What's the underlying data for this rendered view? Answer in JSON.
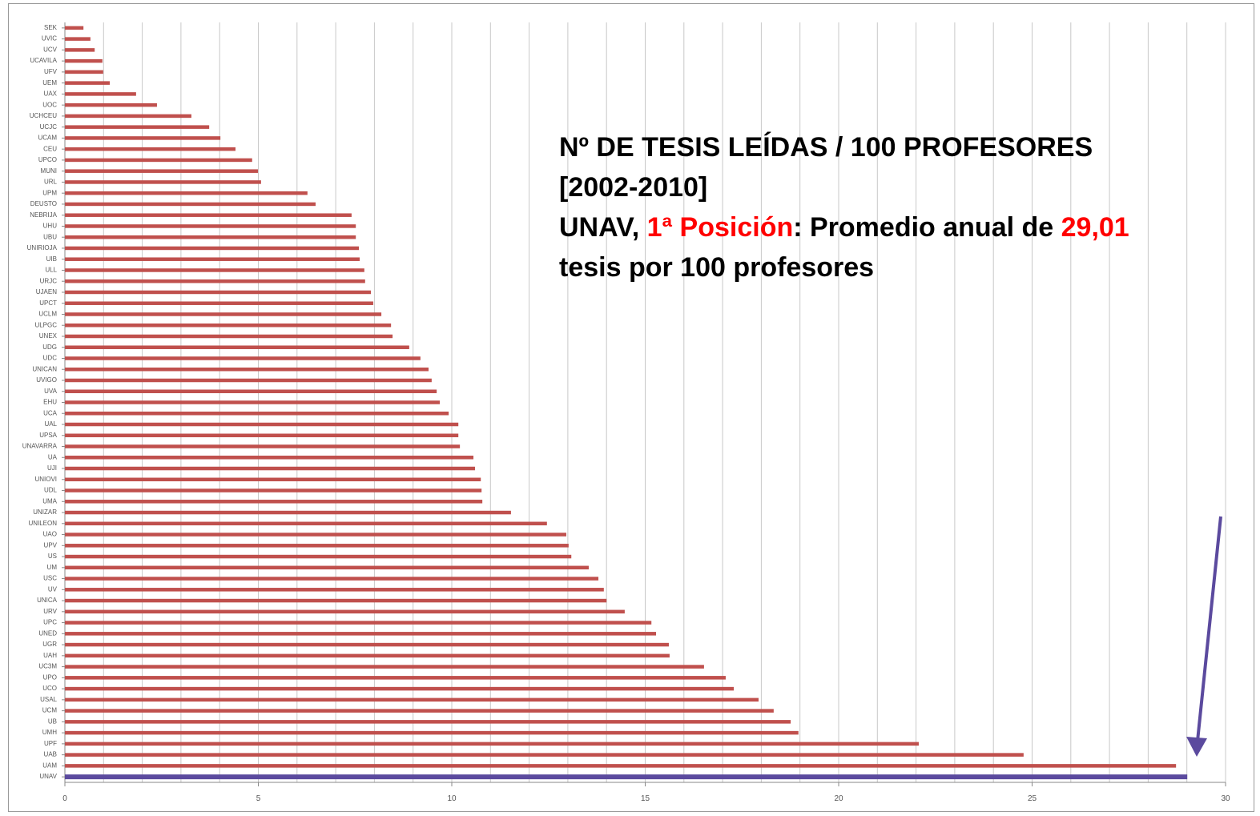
{
  "chart_data": {
    "type": "bar",
    "orientation": "horizontal",
    "categories": [
      "SEK",
      "UVIC",
      "UCV",
      "UCAVILA",
      "UFV",
      "UEM",
      "UAX",
      "UOC",
      "UCHCEU",
      "UCJC",
      "UCAM",
      "CEU",
      "UPCO",
      "MUNI",
      "URL",
      "UPM",
      "DEUSTO",
      "NEBRIJA",
      "UHU",
      "UBU",
      "UNIRIOJA",
      "UIB",
      "ULL",
      "URJC",
      "UJAEN",
      "UPCT",
      "UCLM",
      "ULPGC",
      "UNEX",
      "UDG",
      "UDC",
      "UNICAN",
      "UVIGO",
      "UVA",
      "EHU",
      "UCA",
      "UAL",
      "UPSA",
      "UNAVARRA",
      "UA",
      "UJI",
      "UNIOVI",
      "UDL",
      "UMA",
      "UNIZAR",
      "UNILEON",
      "UAO",
      "UPV",
      "US",
      "UM",
      "USC",
      "UV",
      "UNICA",
      "URV",
      "UPC",
      "UNED",
      "UGR",
      "UAH",
      "UC3M",
      "UPO",
      "UCO",
      "USAL",
      "UCM",
      "UB",
      "UMH",
      "UPF",
      "UAB",
      "UAM",
      "UNAV"
    ],
    "values": [
      0.48,
      0.66,
      0.77,
      0.97,
      0.99,
      1.16,
      1.84,
      2.38,
      3.27,
      3.73,
      4.02,
      4.41,
      4.84,
      4.99,
      5.07,
      6.27,
      6.48,
      7.41,
      7.52,
      7.52,
      7.6,
      7.62,
      7.74,
      7.76,
      7.91,
      7.97,
      8.18,
      8.43,
      8.47,
      8.9,
      9.19,
      9.4,
      9.48,
      9.61,
      9.69,
      9.92,
      10.17,
      10.17,
      10.21,
      10.56,
      10.6,
      10.75,
      10.77,
      10.79,
      11.53,
      12.46,
      12.96,
      13.02,
      13.09,
      13.54,
      13.79,
      13.93,
      14.0,
      14.47,
      15.16,
      15.28,
      15.61,
      15.63,
      16.52,
      17.08,
      17.29,
      17.93,
      18.32,
      18.76,
      18.96,
      22.07,
      24.78,
      28.72,
      29.01
    ],
    "colors": [
      "#c0504d",
      "#c0504d",
      "#c0504d",
      "#c0504d",
      "#c0504d",
      "#c0504d",
      "#c0504d",
      "#c0504d",
      "#c0504d",
      "#c0504d",
      "#c0504d",
      "#c0504d",
      "#c0504d",
      "#c0504d",
      "#c0504d",
      "#c0504d",
      "#c0504d",
      "#c0504d",
      "#c0504d",
      "#c0504d",
      "#c0504d",
      "#c0504d",
      "#c0504d",
      "#c0504d",
      "#c0504d",
      "#c0504d",
      "#c0504d",
      "#c0504d",
      "#c0504d",
      "#c0504d",
      "#c0504d",
      "#c0504d",
      "#c0504d",
      "#c0504d",
      "#c0504d",
      "#c0504d",
      "#c0504d",
      "#c0504d",
      "#c0504d",
      "#c0504d",
      "#c0504d",
      "#c0504d",
      "#c0504d",
      "#c0504d",
      "#c0504d",
      "#c0504d",
      "#c0504d",
      "#c0504d",
      "#c0504d",
      "#c0504d",
      "#c0504d",
      "#c0504d",
      "#c0504d",
      "#c0504d",
      "#c0504d",
      "#c0504d",
      "#c0504d",
      "#c0504d",
      "#c0504d",
      "#c0504d",
      "#c0504d",
      "#c0504d",
      "#c0504d",
      "#c0504d",
      "#c0504d",
      "#c0504d",
      "#c0504d",
      "#c0504d",
      "#5b4a9e"
    ],
    "xlim": [
      0,
      30
    ],
    "xticks": [
      0,
      5,
      10,
      15,
      20,
      25,
      30
    ],
    "xgrid": [
      0,
      1,
      2,
      3,
      4,
      5,
      6,
      7,
      8,
      9,
      10,
      11,
      12,
      13,
      14,
      15,
      16,
      17,
      18,
      19,
      20,
      21,
      22,
      23,
      24,
      25,
      26,
      27,
      28,
      29,
      30
    ],
    "annotation": {
      "lines": [
        [
          {
            "text": "Nº DE TESIS LEÍDAS / 100 PROFESORES",
            "color": "#000000"
          }
        ],
        [
          {
            "text": "[2002-2010]",
            "color": "#000000"
          }
        ],
        [
          {
            "text": "UNAV, ",
            "color": "#000000"
          },
          {
            "text": "1ª Posición",
            "color": "#ff0000"
          },
          {
            "text": ": Promedio anual de ",
            "color": "#000000"
          },
          {
            "text": "29,01",
            "color": "#ff0000"
          }
        ],
        [
          {
            "text": "tesis por 100 profesores",
            "color": "#000000"
          }
        ]
      ]
    }
  }
}
